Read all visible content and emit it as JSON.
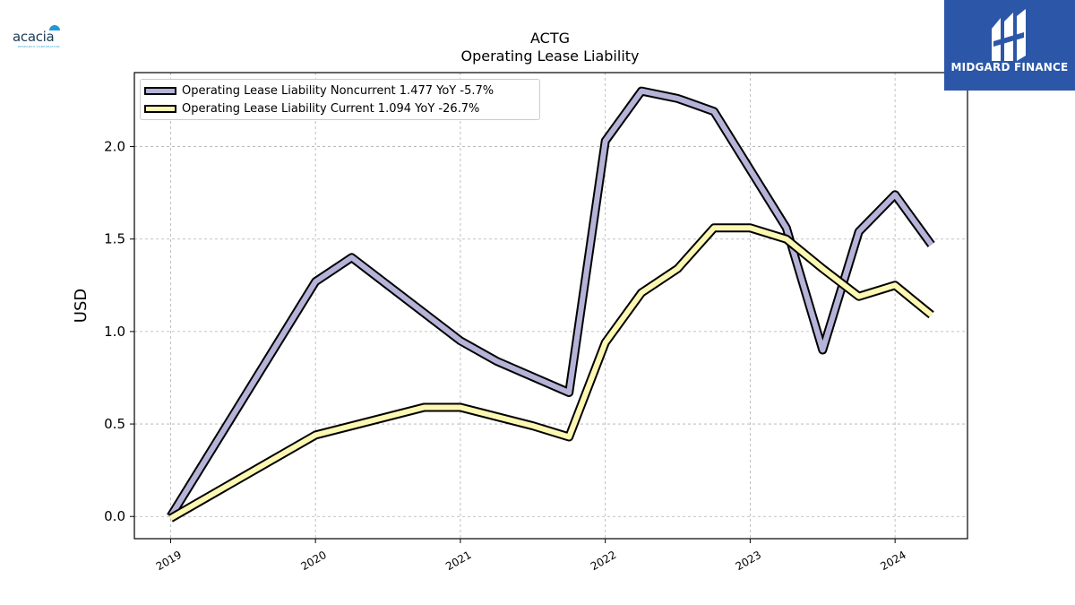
{
  "branding": {
    "left_logo_text": "acacia",
    "left_logo_subtext": "RESEARCH CORPORATION",
    "right_badge_text": "MIDGARD FINANCE",
    "right_badge_color": "#2c57a8"
  },
  "chart_data": {
    "type": "line",
    "title": "ACTG",
    "subtitle": "Operating Lease Liability",
    "xlabel": "",
    "ylabel": "USD",
    "xlim": [
      2018.75,
      2024.5
    ],
    "ylim": [
      -0.12,
      2.4
    ],
    "x_ticks": [
      {
        "value": 2019,
        "label": "2019"
      },
      {
        "value": 2020,
        "label": "2020"
      },
      {
        "value": 2021,
        "label": "2021"
      },
      {
        "value": 2022,
        "label": "2022"
      },
      {
        "value": 2023,
        "label": "2023"
      },
      {
        "value": 2024,
        "label": "2024"
      }
    ],
    "y_ticks": [
      {
        "value": 0.0,
        "label": "0.0"
      },
      {
        "value": 0.5,
        "label": "0.5"
      },
      {
        "value": 1.0,
        "label": "1.0"
      },
      {
        "value": 1.5,
        "label": "1.5"
      },
      {
        "value": 2.0,
        "label": "2.0"
      }
    ],
    "grid": true,
    "legend_position": "top-left",
    "series": [
      {
        "name": "Operating Lease Liability Noncurrent",
        "legend_label": "Operating Lease Liability Noncurrent  1.477 YoY -5.7%",
        "color": "#b5b3d8",
        "points": [
          [
            2019.0,
            0.0
          ],
          [
            2020.0,
            1.27
          ],
          [
            2020.25,
            1.4
          ],
          [
            2021.0,
            0.95
          ],
          [
            2021.25,
            0.84
          ],
          [
            2021.75,
            0.67
          ],
          [
            2022.0,
            2.03
          ],
          [
            2022.25,
            2.3
          ],
          [
            2022.5,
            2.26
          ],
          [
            2022.75,
            2.19
          ],
          [
            2023.25,
            1.56
          ],
          [
            2023.5,
            0.9
          ],
          [
            2023.75,
            1.54
          ],
          [
            2024.0,
            1.74
          ],
          [
            2024.25,
            1.47
          ]
        ]
      },
      {
        "name": "Operating Lease Liability Current",
        "legend_label": "Operating Lease Liability Current  1.094 YoY -26.7%",
        "color": "#fcf8b2",
        "points": [
          [
            2019.0,
            -0.01
          ],
          [
            2020.0,
            0.44
          ],
          [
            2020.25,
            0.49
          ],
          [
            2020.75,
            0.59
          ],
          [
            2021.0,
            0.59
          ],
          [
            2021.5,
            0.49
          ],
          [
            2021.75,
            0.43
          ],
          [
            2022.0,
            0.94
          ],
          [
            2022.25,
            1.21
          ],
          [
            2022.5,
            1.34
          ],
          [
            2022.75,
            1.56
          ],
          [
            2023.0,
            1.56
          ],
          [
            2023.25,
            1.5
          ],
          [
            2023.5,
            1.34
          ],
          [
            2023.75,
            1.19
          ],
          [
            2024.0,
            1.25
          ],
          [
            2024.25,
            1.09
          ]
        ]
      }
    ]
  }
}
